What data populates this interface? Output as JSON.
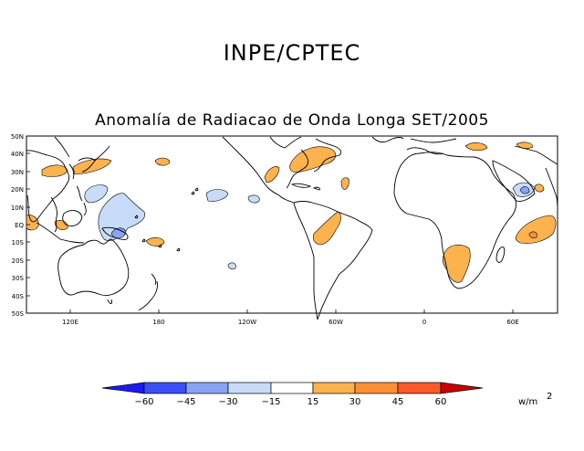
{
  "header": {
    "title": "INPE/CPTEC",
    "subtitle": "Anomalía de Radiacao de Onda Longa SET/2005"
  },
  "map": {
    "lat_labels": [
      "50N",
      "40N",
      "30N",
      "20N",
      "10N",
      "EQ",
      "10S",
      "20S",
      "30S",
      "40S",
      "50S"
    ],
    "lon_labels": [
      "120E",
      "180",
      "120W",
      "60W",
      "0",
      "60E"
    ]
  },
  "legend": {
    "tick_labels": [
      "−60",
      "−45",
      "−30",
      "−15",
      "15",
      "30",
      "45",
      "60"
    ],
    "unit": "w/m",
    "unit_exp": "2",
    "colors": [
      "#1a1aee",
      "#3c4ef5",
      "#8aa4f5",
      "#c8dcfa",
      "#ffffff",
      "#fdb34d",
      "#fd8f34",
      "#fa5a28",
      "#c80000"
    ]
  },
  "anomaly_colors": {
    "positive": "#fdb34d",
    "negative": "#c8dcfa",
    "strong_negative": "#8aa4f5",
    "strong_positive": "#fd8f34"
  }
}
